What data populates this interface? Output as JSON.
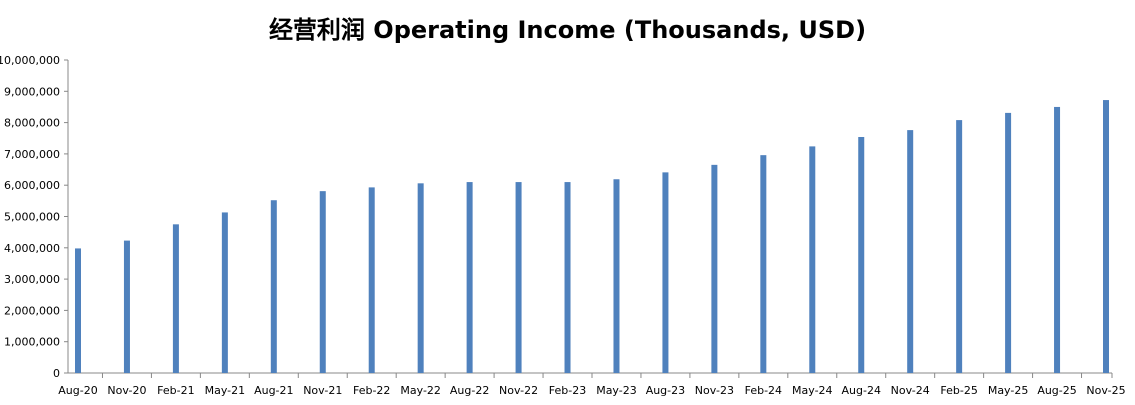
{
  "chart_data": {
    "type": "bar",
    "title": "经营利润 Operating Income (Thousands, USD)",
    "xlabel": "",
    "ylabel": "",
    "ylim": [
      0,
      10000000
    ],
    "y_ticks": [
      0,
      1000000,
      2000000,
      3000000,
      4000000,
      5000000,
      6000000,
      7000000,
      8000000,
      9000000,
      10000000
    ],
    "y_tick_labels": [
      "0",
      "1,000,000",
      "2,000,000",
      "3,000,000",
      "4,000,000",
      "5,000,000",
      "6,000,000",
      "7,000,000",
      "8,000,000",
      "9,000,000",
      "10,000,000"
    ],
    "grid": false,
    "bar_color": "#4f81bd",
    "categories": [
      "Aug-20",
      "Nov-20",
      "Feb-21",
      "May-21",
      "Aug-21",
      "Nov-21",
      "Feb-22",
      "May-22",
      "Aug-22",
      "Nov-22",
      "Feb-23",
      "May-23",
      "Aug-23",
      "Nov-23",
      "Feb-24",
      "May-24",
      "Aug-24",
      "Nov-24",
      "Feb-25",
      "May-25",
      "Aug-25",
      "Nov-25"
    ],
    "values": [
      3980000,
      4230000,
      4750000,
      5130000,
      5520000,
      5810000,
      5930000,
      6060000,
      6100000,
      6100000,
      6100000,
      6190000,
      6410000,
      6650000,
      6960000,
      7240000,
      7540000,
      7760000,
      8080000,
      8310000,
      8500000,
      8720000
    ]
  }
}
